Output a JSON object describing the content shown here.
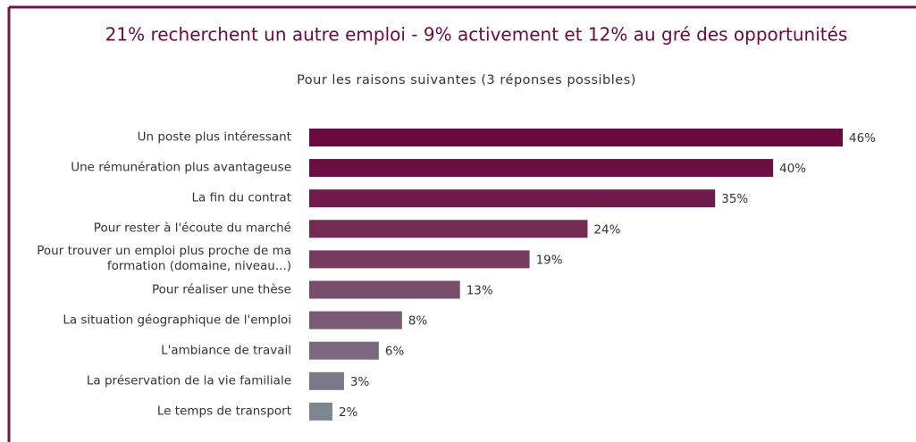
{
  "chart_data": {
    "type": "bar",
    "orientation": "horizontal",
    "title": "21% recherchent un autre emploi - 9% activement et 12% au gré des opportunités",
    "subtitle": "Pour les raisons suivantes (3 réponses possibles)",
    "categories": [
      "Un poste plus intéressant",
      "Une rémunération plus avantageuse",
      "La fin du contrat",
      "Pour rester à l'écoute du marché",
      "Pour trouver un emploi plus proche de ma\nformation (domaine, niveau...)",
      "Pour réaliser une thèse",
      "La situation géographique de l'emploi",
      "L'ambiance de travail",
      "La préservation de la vie familiale",
      "Le temps de transport"
    ],
    "values": [
      46,
      40,
      35,
      24,
      19,
      13,
      8,
      6,
      3,
      2
    ],
    "value_labels": [
      "46%",
      "40%",
      "35%",
      "24%",
      "19%",
      "13%",
      "8%",
      "6%",
      "3%",
      "2%"
    ],
    "colors": [
      "#690a3f",
      "#6b0e43",
      "#6f1b4b",
      "#732b56",
      "#763b5f",
      "#784e6c",
      "#7a5b75",
      "#7b6a7f",
      "#7b7888",
      "#7b8690"
    ]
  }
}
